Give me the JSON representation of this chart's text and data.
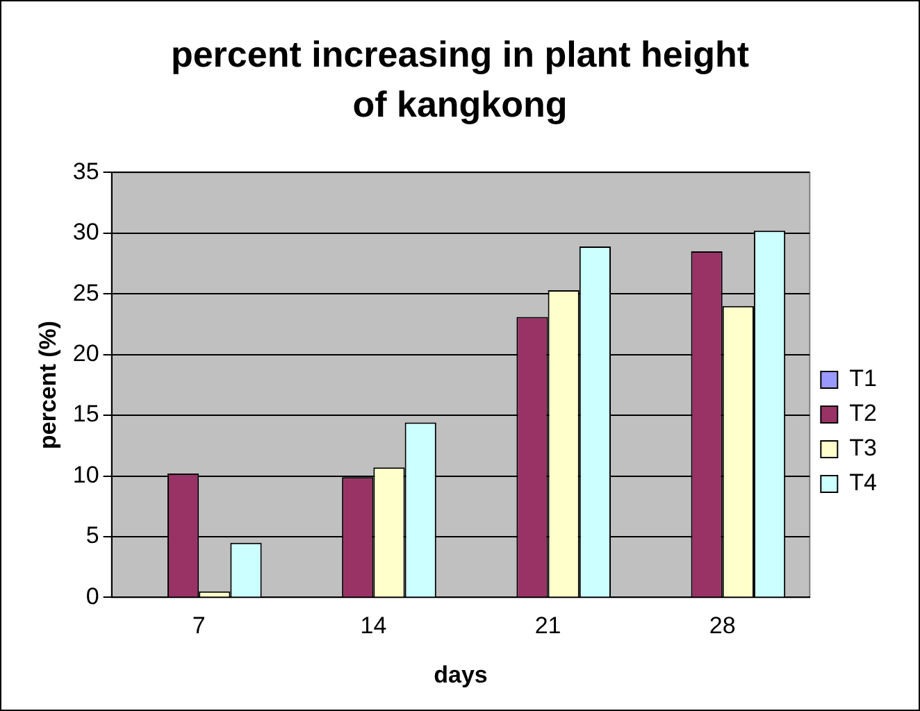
{
  "chart_data": {
    "type": "bar",
    "title": "percent increasing in plant height of kangkong",
    "xlabel": "days",
    "ylabel": "percent (%)",
    "categories": [
      "7",
      "14",
      "21",
      "28"
    ],
    "series": [
      {
        "name": "T1",
        "color": "#9999ff",
        "values": [
          0,
          0,
          0,
          0
        ]
      },
      {
        "name": "T2",
        "color": "#993366",
        "values": [
          10.2,
          9.9,
          23.1,
          28.5
        ]
      },
      {
        "name": "T3",
        "color": "#ffffcc",
        "values": [
          0.5,
          10.7,
          25.3,
          24.0
        ]
      },
      {
        "name": "T4",
        "color": "#ccffff",
        "values": [
          4.5,
          14.4,
          28.9,
          30.2
        ]
      }
    ],
    "ylim": [
      0,
      35
    ],
    "yticks": [
      0,
      5,
      10,
      15,
      20,
      25,
      30,
      35
    ],
    "grid": "y",
    "legend": "right"
  }
}
